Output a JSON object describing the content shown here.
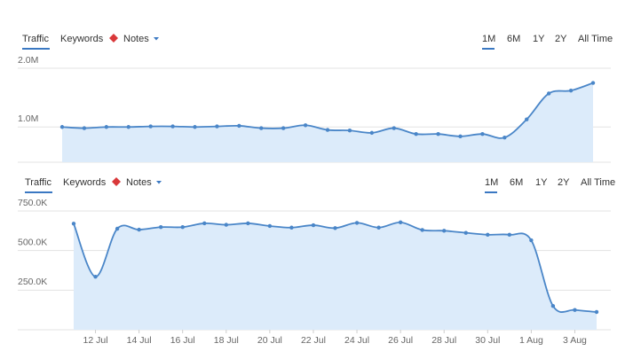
{
  "chart_data": [
    {
      "type": "area",
      "tabs": [
        "Traffic",
        "Keywords"
      ],
      "notes": "Notes",
      "ranges": [
        "1M",
        "6M",
        "1Y",
        "2Y",
        "All Time"
      ],
      "values": [
        1000000,
        980000,
        1000000,
        1000000,
        1010000,
        1010000,
        1000000,
        1010000,
        1020000,
        980000,
        980000,
        1030000,
        950000,
        940000,
        900000,
        980000,
        880000,
        880000,
        840000,
        880000,
        820000,
        1130000,
        1570000,
        1620000,
        1750000
      ],
      "color": "#4a86c8",
      "fill": "#dcebfa",
      "ylim": [
        400000,
        2000000
      ],
      "yticks": [
        {
          "value": 1000000,
          "label": "1.0M"
        },
        {
          "value": 2000000,
          "label": "2.0M"
        }
      ],
      "grid": true
    },
    {
      "type": "area",
      "tabs": [
        "Traffic",
        "Keywords"
      ],
      "notes": "Notes",
      "ranges": [
        "1M",
        "6M",
        "1Y",
        "2Y",
        "All Time"
      ],
      "categories": [
        null,
        "12 Jul",
        null,
        "14 Jul",
        null,
        "16 Jul",
        null,
        "18 Jul",
        null,
        "20 Jul",
        null,
        "22 Jul",
        null,
        "24 Jul",
        null,
        "26 Jul",
        null,
        "28 Jul",
        null,
        "30 Jul",
        null,
        "1 Aug",
        null,
        "3 Aug",
        null
      ],
      "values": [
        670000,
        335000,
        638000,
        632000,
        648000,
        648000,
        672000,
        663000,
        672000,
        655000,
        645000,
        660000,
        642000,
        675000,
        645000,
        678000,
        630000,
        625000,
        612000,
        600000,
        600000,
        565000,
        150000,
        125000,
        112000
      ],
      "color": "#4a86c8",
      "fill": "#dcebfa",
      "ylim": [
        0,
        750000
      ],
      "yticks": [
        {
          "value": 250000,
          "label": "250.0K"
        },
        {
          "value": 500000,
          "label": "500.0K"
        },
        {
          "value": 750000,
          "label": "750.0K"
        }
      ],
      "grid": true
    }
  ]
}
